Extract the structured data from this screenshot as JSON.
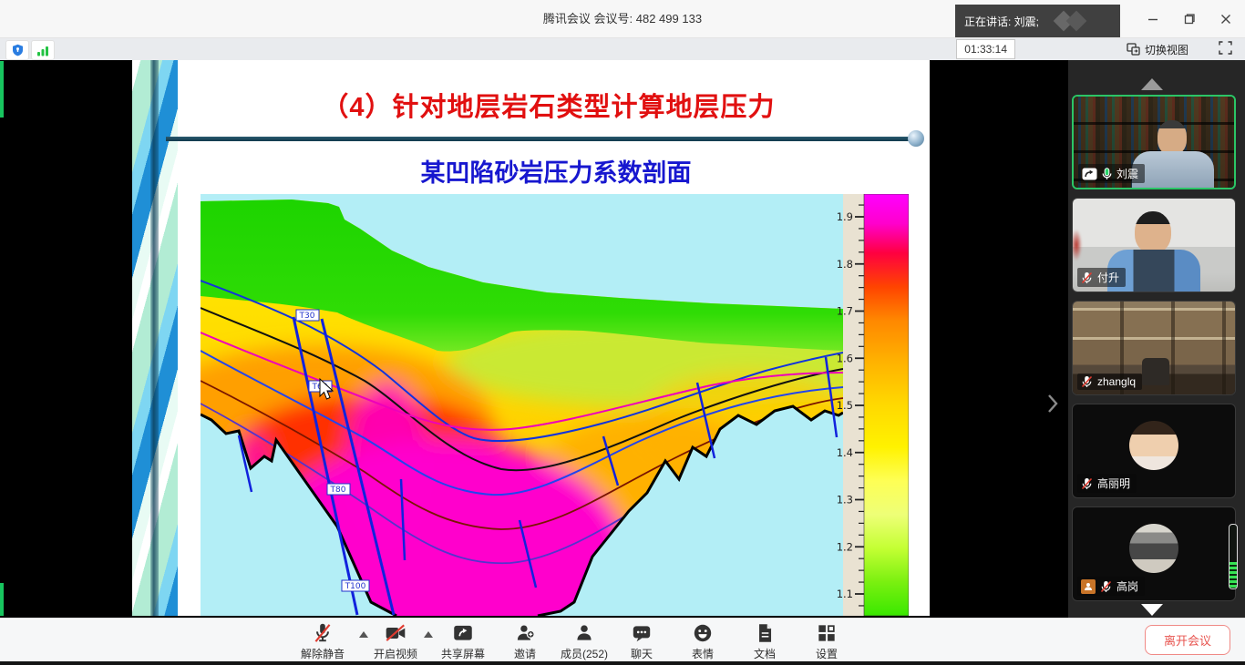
{
  "window": {
    "title": "腾讯会议 会议号: 482 499 133",
    "speaking_toast": "正在讲话: 刘震;",
    "timer": "01:33:14",
    "switch_view_label": "切换视图"
  },
  "slide": {
    "title": "（4）针对地层岩石类型计算地层压力",
    "subtitle": "某凹陷砂岩压力系数剖面"
  },
  "chart_data": {
    "type": "heatmap",
    "title": "某凹陷砂岩压力系数剖面",
    "description": "Geological cross-section of a sag basin colored by sandstone pressure coefficient; warm colors (magenta/red) mark high pressure coefficient in the deep basin center, green/yellow mark lower values on the flanks; blue near-vertical lines are faults, colored curves are stratigraphic horizons.",
    "colorbar": {
      "min": 1.1,
      "max": 1.9,
      "ticks": [
        "1.9",
        "1.8",
        "1.7",
        "1.6",
        "1.5",
        "1.4",
        "1.3",
        "1.2",
        "1.1"
      ],
      "colors_top_to_bottom": [
        "#ff00ff",
        "#ff0040",
        "#ff7700",
        "#ffc800",
        "#ffee00",
        "#f4ff55",
        "#ccff44",
        "#7af010",
        "#3ae800"
      ]
    },
    "fault_labels": [
      "T30",
      "T60",
      "T80",
      "T100"
    ],
    "legend_position": "right"
  },
  "sidebar": {
    "participants": [
      {
        "name": "刘震",
        "speaking": true,
        "muted": false,
        "sharing": true
      },
      {
        "name": "付升",
        "speaking": false,
        "muted": true,
        "sharing": false
      },
      {
        "name": "zhanglq",
        "speaking": false,
        "muted": true,
        "sharing": false
      },
      {
        "name": "高丽明",
        "speaking": false,
        "muted": true,
        "sharing": false
      },
      {
        "name": "高岗",
        "speaking": false,
        "muted": true,
        "sharing": false,
        "badge": "phone-user"
      }
    ]
  },
  "toolbar": {
    "items": [
      {
        "label": "解除静音",
        "icon": "mic-muted-icon"
      },
      {
        "label": "开启视频",
        "icon": "camera-off-icon"
      },
      {
        "label": "共享屏幕",
        "icon": "share-screen-icon"
      },
      {
        "label": "邀请",
        "icon": "invite-icon"
      },
      {
        "label": "成员(252)",
        "icon": "members-icon"
      },
      {
        "label": "聊天",
        "icon": "chat-icon"
      },
      {
        "label": "表情",
        "icon": "emoji-icon"
      },
      {
        "label": "文档",
        "icon": "document-icon"
      },
      {
        "label": "设置",
        "icon": "settings-icon"
      }
    ],
    "leave_label": "离开会议"
  }
}
